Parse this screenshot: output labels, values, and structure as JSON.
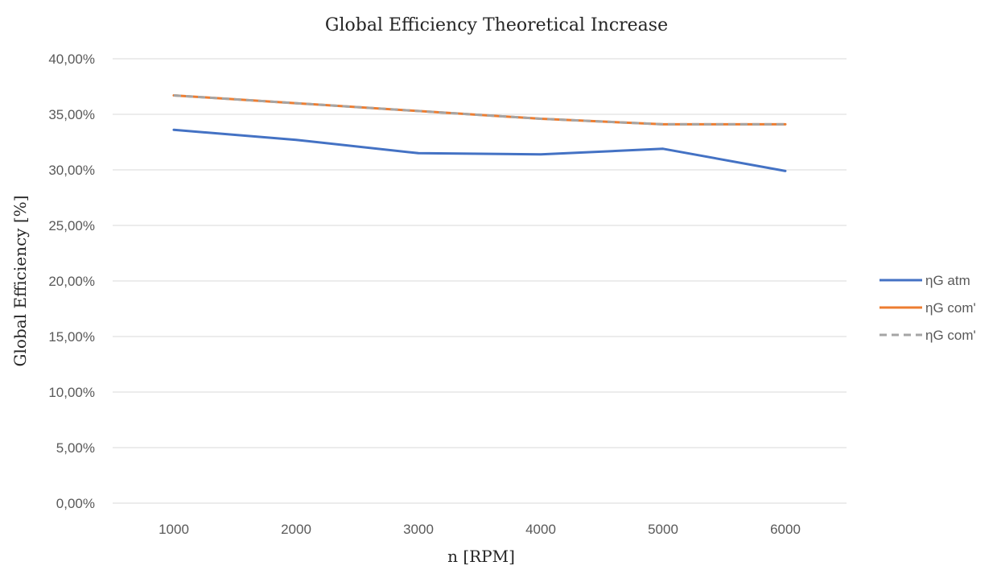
{
  "chart_data": {
    "type": "line",
    "title": "Global Efficiency Theoretical Increase",
    "xlabel": "n [RPM]",
    "ylabel": "Global Efficiency [%]",
    "categories": [
      "1000",
      "2000",
      "3000",
      "4000",
      "5000",
      "6000"
    ],
    "ylim": [
      0,
      0.4
    ],
    "yticks": [
      0,
      0.05,
      0.1,
      0.15,
      0.2,
      0.25,
      0.3,
      0.35,
      0.4
    ],
    "ytick_labels": [
      "0,00%",
      "5,00%",
      "10,00%",
      "15,00%",
      "20,00%",
      "25,00%",
      "30,00%",
      "35,00%",
      "40,00%"
    ],
    "grid": true,
    "legend_position": "right",
    "series": [
      {
        "name": "ηG atm",
        "values": [
          0.336,
          0.327,
          0.315,
          0.314,
          0.319,
          0.299
        ],
        "color": "#4472C4",
        "dash": "solid"
      },
      {
        "name": "ηG com'",
        "values": [
          0.367,
          0.36,
          0.353,
          0.346,
          0.341,
          0.341
        ],
        "color": "#ED7D31",
        "dash": "solid"
      },
      {
        "name": "ηG com'",
        "values": [
          0.367,
          0.36,
          0.353,
          0.346,
          0.341,
          0.341
        ],
        "color": "#A5A5A5",
        "dash": "dashed"
      }
    ]
  }
}
